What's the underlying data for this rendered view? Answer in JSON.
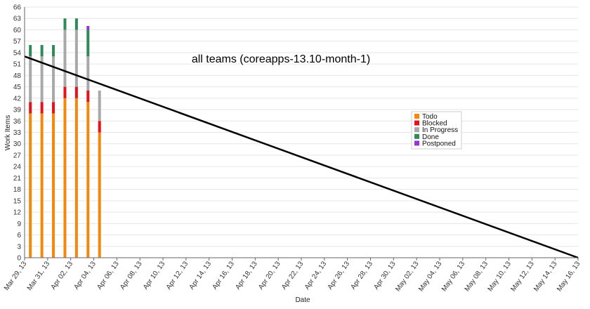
{
  "chart_data": {
    "type": "bar",
    "title": "all teams (coreapps-13.10-month-1)",
    "xlabel": "Date",
    "ylabel": "Work Items",
    "ylim": [
      0,
      66
    ],
    "yticks": [
      0,
      3,
      6,
      9,
      12,
      15,
      18,
      21,
      24,
      27,
      30,
      33,
      36,
      39,
      42,
      45,
      48,
      51,
      54,
      57,
      60,
      63,
      66
    ],
    "xtick_labels": [
      "Mar 29, 13",
      "Mar 31, 13",
      "Apr 02, 13",
      "Apr 04, 13",
      "Apr 06, 13",
      "Apr 08, 13",
      "Apr 10, 13",
      "Apr 12, 13",
      "Apr 14, 13",
      "Apr 16, 13",
      "Apr 18, 13",
      "Apr 20, 13",
      "Apr 22, 13",
      "Apr 24, 13",
      "Apr 26, 13",
      "Apr 28, 13",
      "Apr 30, 13",
      "May 02, 13",
      "May 04, 13",
      "May 06, 13",
      "May 08, 13",
      "May 10, 13",
      "May 12, 13",
      "May 14, 13",
      "May 16, 13"
    ],
    "categories": [
      "2013-03-29",
      "2013-03-30",
      "2013-03-31",
      "2013-04-01",
      "2013-04-02",
      "2013-04-03",
      "2013-04-04"
    ],
    "series": [
      {
        "name": "Todo",
        "color": "#f5870a",
        "values": [
          38,
          38,
          38,
          42,
          42,
          41,
          33
        ]
      },
      {
        "name": "Blocked",
        "color": "#e8101a",
        "values": [
          3,
          3,
          3,
          3,
          3,
          3,
          3
        ]
      },
      {
        "name": "In Progress",
        "color": "#a9a9a9",
        "values": [
          12,
          12,
          12,
          15,
          15,
          9,
          8
        ]
      },
      {
        "name": "Done",
        "color": "#2e8b57",
        "values": [
          3,
          3,
          3,
          3,
          3,
          7,
          0
        ]
      },
      {
        "name": "Postponed",
        "color": "#9b30d9",
        "values": [
          0,
          0,
          0,
          0,
          0,
          1,
          0
        ]
      }
    ],
    "trend_line": {
      "color": "#000000",
      "start": {
        "date": "2013-03-29",
        "value": 53
      },
      "end": {
        "date": "2013-05-16",
        "value": 0
      }
    },
    "legend_position": "right",
    "grid": "horizontal"
  }
}
